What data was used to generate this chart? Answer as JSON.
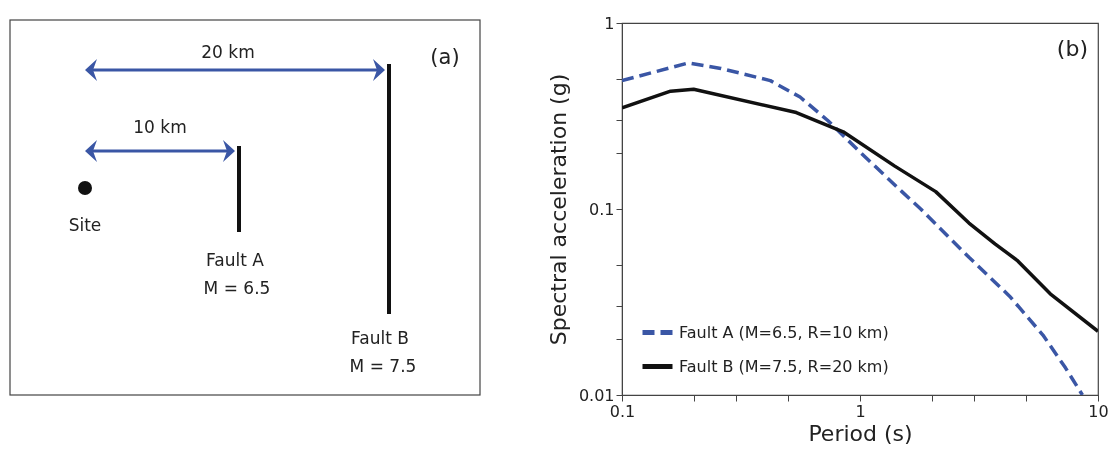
{
  "chart_data": [
    {
      "type": "other",
      "annotations": [
        "(a)",
        "20 km",
        "10 km",
        "Site",
        "Fault A",
        "M = 6.5",
        "Fault B",
        "M = 7.5"
      ]
    },
    {
      "type": "line",
      "xlabel": "Period (s)",
      "ylabel": "Spectral acceleration (g)",
      "log": "xy",
      "grid": false,
      "legend": "bottom left",
      "annotations": [
        "(b)"
      ],
      "xlim": [
        0.1,
        10
      ],
      "ylim": [
        0.01,
        1
      ],
      "xticks": [
        0.1,
        {
          "value": 0.2,
          "label": null
        },
        {
          "value": 0.3,
          "label": null
        },
        {
          "value": 0.5,
          "label": null
        },
        1,
        {
          "value": 2,
          "label": null
        },
        {
          "value": 3,
          "label": null
        },
        {
          "value": 5,
          "label": null
        },
        10
      ],
      "yticks": [
        0.01,
        {
          "value": 0.02,
          "label": null
        },
        {
          "value": 0.03,
          "label": null
        },
        {
          "value": 0.05,
          "label": null
        },
        0.1,
        {
          "value": 0.2,
          "label": null
        },
        {
          "value": 0.3,
          "label": null
        },
        {
          "value": 0.5,
          "label": null
        },
        1
      ],
      "series": [
        {
          "name": "Fault A (M=6.5, R=10 km)",
          "color": "#3a56a5",
          "line_style": "dashed",
          "x": [
            0.1,
            0.19,
            0.26,
            0.42,
            0.56,
            0.73,
            1.01,
            1.5,
            1.8,
            2.87,
            4.25,
            5.87,
            7.3,
            8.6
          ],
          "values": [
            0.49,
            0.61,
            0.57,
            0.49,
            0.4,
            0.3,
            0.2,
            0.124,
            0.1,
            0.055,
            0.034,
            0.021,
            0.014,
            0.01
          ]
        },
        {
          "name": "Fault B (M=7.5, R=20 km)",
          "color": "#111111",
          "line_style": "solid",
          "x": [
            0.1,
            0.16,
            0.2,
            0.54,
            0.85,
            1.4,
            2.08,
            2.87,
            3.69,
            4.57,
            6.3,
            10
          ],
          "values": [
            0.35,
            0.43,
            0.44,
            0.33,
            0.26,
            0.17,
            0.124,
            0.084,
            0.065,
            0.053,
            0.035,
            0.022
          ]
        }
      ]
    }
  ]
}
